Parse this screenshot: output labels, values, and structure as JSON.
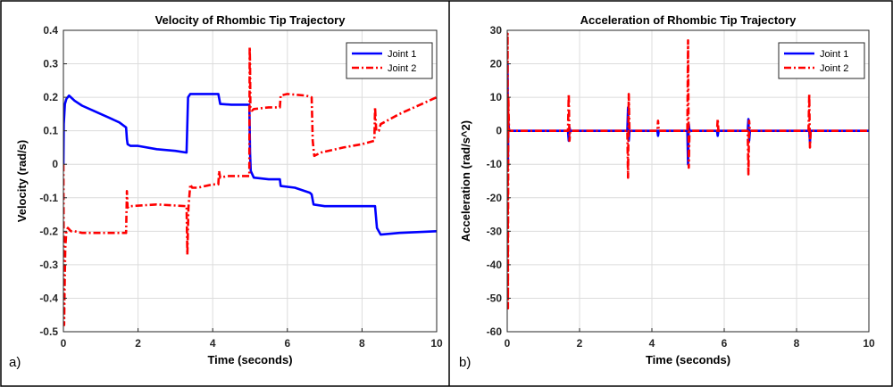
{
  "panels": [
    {
      "label": "a)"
    },
    {
      "label": "b)"
    }
  ],
  "chart_data": [
    {
      "type": "line",
      "title": "Velocity of Rhombic Tip Trajectory",
      "xlabel": "Time (seconds)",
      "ylabel": "Velocity (rad/s)",
      "xlim": [
        0,
        10
      ],
      "ylim": [
        -0.5,
        0.4
      ],
      "xticks": [
        0,
        2,
        4,
        6,
        8,
        10
      ],
      "xtick_labels": [
        "0",
        "2",
        "4",
        "6",
        "8",
        "10"
      ],
      "yticks": [
        -0.5,
        -0.4,
        -0.3,
        -0.2,
        -0.1,
        0,
        0.1,
        0.2,
        0.3,
        0.4
      ],
      "ytick_labels": [
        "-0.5",
        "-0.4",
        "-0.3",
        "-0.2",
        "-0.1",
        "0",
        "0.1",
        "0.2",
        "0.3",
        "0.4"
      ],
      "grid": true,
      "legend_position": "top-right",
      "series": [
        {
          "name": "Joint 1",
          "color": "#0000ff",
          "style": "solid",
          "x": [
            0,
            0.01,
            0.04,
            0.08,
            0.15,
            0.2,
            0.3,
            0.5,
            0.8,
            1.2,
            1.5,
            1.68,
            1.7,
            1.72,
            1.8,
            2.0,
            2.5,
            3.0,
            3.3,
            3.34,
            3.4,
            3.5,
            3.8,
            4.15,
            4.2,
            4.5,
            4.98,
            5.0,
            5.02,
            5.1,
            5.5,
            5.8,
            5.82,
            6.2,
            6.6,
            6.65,
            6.7,
            7.0,
            8.0,
            8.35,
            8.4,
            8.5,
            9.0,
            10.0
          ],
          "y": [
            0,
            0.12,
            0.18,
            0.195,
            0.205,
            0.2,
            0.19,
            0.175,
            0.16,
            0.14,
            0.125,
            0.11,
            0.075,
            0.06,
            0.055,
            0.055,
            0.045,
            0.04,
            0.035,
            0.2,
            0.21,
            0.21,
            0.21,
            0.21,
            0.18,
            0.178,
            0.178,
            0.035,
            -0.02,
            -0.04,
            -0.045,
            -0.045,
            -0.065,
            -0.07,
            -0.085,
            -0.09,
            -0.12,
            -0.125,
            -0.125,
            -0.125,
            -0.19,
            -0.21,
            -0.205,
            -0.2
          ]
        },
        {
          "name": "Joint 2",
          "color": "#ff0000",
          "style": "dashdot",
          "x": [
            0,
            0.01,
            0.02,
            0.03,
            0.05,
            0.08,
            0.12,
            0.2,
            0.3,
            0.5,
            1.0,
            1.5,
            1.68,
            1.7,
            1.72,
            1.75,
            1.8,
            2.5,
            3.3,
            3.32,
            3.35,
            3.4,
            3.45,
            3.6,
            4.0,
            4.15,
            4.17,
            4.2,
            4.4,
            4.98,
            4.99,
            5.0,
            5.01,
            5.05,
            5.1,
            5.5,
            5.8,
            5.82,
            6.0,
            6.5,
            6.65,
            6.68,
            6.72,
            6.9,
            7.5,
            8.0,
            8.33,
            8.35,
            8.38,
            8.45,
            8.5,
            9.0,
            10.0
          ],
          "y": [
            0,
            -0.3,
            -0.48,
            -0.38,
            -0.25,
            -0.2,
            -0.19,
            -0.2,
            -0.2,
            -0.205,
            -0.205,
            -0.205,
            -0.205,
            -0.08,
            -0.13,
            -0.125,
            -0.125,
            -0.12,
            -0.125,
            -0.27,
            -0.13,
            -0.06,
            -0.07,
            -0.07,
            -0.06,
            -0.06,
            -0.02,
            -0.04,
            -0.035,
            -0.035,
            0.35,
            0.3,
            0.17,
            0.16,
            0.165,
            0.17,
            0.17,
            0.205,
            0.21,
            0.205,
            0.2,
            0.07,
            0.025,
            0.035,
            0.05,
            0.06,
            0.07,
            0.17,
            0.1,
            0.1,
            0.12,
            0.15,
            0.2
          ]
        }
      ]
    },
    {
      "type": "line",
      "title": "Acceleration of Rhombic Tip Trajectory",
      "xlabel": "Time (seconds)",
      "ylabel": "Acceleration (rad/s^2)",
      "xlim": [
        0,
        10
      ],
      "ylim": [
        -60,
        30
      ],
      "xticks": [
        0,
        2,
        4,
        6,
        8,
        10
      ],
      "xtick_labels": [
        "0",
        "2",
        "4",
        "6",
        "8",
        "10"
      ],
      "yticks": [
        -60,
        -50,
        -40,
        -30,
        -20,
        -10,
        0,
        10,
        20,
        30
      ],
      "ytick_labels": [
        "-60",
        "-50",
        "-40",
        "-30",
        "-20",
        "-10",
        "0",
        "10",
        "20",
        "30"
      ],
      "grid": true,
      "legend_position": "top-right",
      "series": [
        {
          "name": "Joint 1",
          "color": "#0000ff",
          "style": "solid",
          "x": [
            0,
            0.01,
            0.02,
            0.03,
            0.05,
            0.1,
            1.68,
            1.7,
            1.72,
            1.74,
            3.32,
            3.34,
            3.36,
            3.38,
            4.15,
            4.17,
            4.19,
            4.98,
            5.0,
            5.02,
            5.04,
            5.8,
            5.82,
            5.84,
            6.65,
            6.67,
            6.69,
            6.71,
            8.35,
            8.37,
            8.39,
            10.0
          ],
          "y": [
            0,
            20,
            -10,
            3,
            0,
            0,
            0,
            -3,
            1,
            0,
            0,
            7,
            -3,
            0,
            0,
            -1.5,
            0,
            0,
            -10,
            2,
            0,
            0,
            -1.5,
            0,
            0,
            3.5,
            -3,
            0,
            0,
            -3.5,
            0,
            0
          ]
        },
        {
          "name": "Joint 2",
          "color": "#ff0000",
          "style": "dashdot",
          "x": [
            0,
            0.01,
            0.02,
            0.03,
            0.05,
            0.1,
            1.68,
            1.7,
            1.72,
            1.74,
            3.32,
            3.34,
            3.36,
            3.38,
            4.15,
            4.17,
            4.19,
            4.98,
            5.0,
            5.02,
            5.04,
            5.8,
            5.82,
            5.84,
            6.65,
            6.67,
            6.69,
            6.71,
            8.33,
            8.35,
            8.37,
            8.39,
            10.0
          ],
          "y": [
            0,
            29,
            -53,
            10,
            0,
            0,
            0,
            11,
            -3,
            0,
            0,
            -14,
            11,
            0,
            0,
            3,
            0,
            0,
            27,
            -11,
            0,
            0,
            3.5,
            0,
            0,
            -13,
            3,
            0,
            0,
            11,
            -5,
            0,
            0
          ]
        }
      ]
    }
  ]
}
